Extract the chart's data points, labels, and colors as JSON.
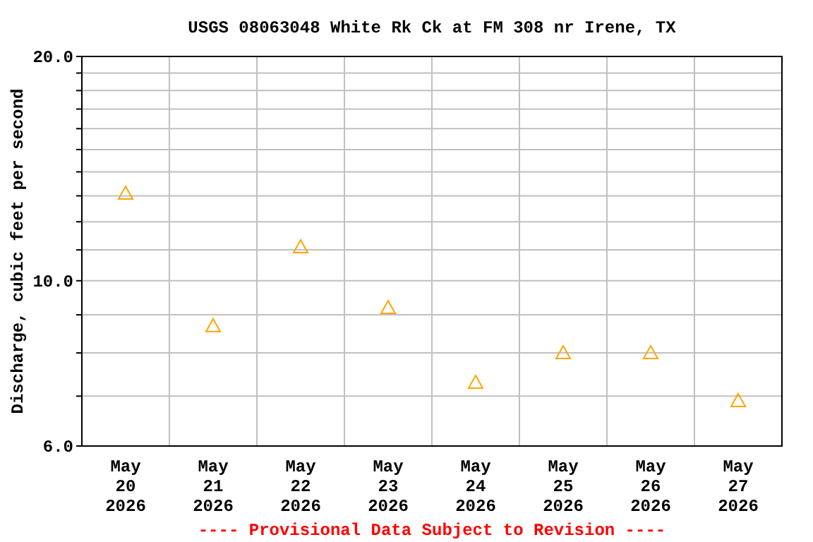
{
  "chart_data": {
    "type": "scatter",
    "title": "USGS 08063048 White Rk Ck at FM 308 nr Irene, TX",
    "ylabel": "Discharge, cubic feet per second",
    "categories": [
      "May\n20\n2026",
      "May\n21\n2026",
      "May\n22\n2026",
      "May\n23\n2026",
      "May\n24\n2026",
      "May\n25\n2026",
      "May\n26\n2026",
      "May\n27\n2026"
    ],
    "series": [
      {
        "color": "#ffa500",
        "values": [
          13.1,
          8.7,
          11.1,
          9.2,
          7.3,
          8.0,
          8.0,
          6.9
        ]
      }
    ],
    "log": "y",
    "ylim": [
      6,
      20
    ],
    "yticks": [
      {
        "value": 6,
        "label": "6.0"
      },
      {
        "value": 7,
        "label": null
      },
      {
        "value": 8,
        "label": null
      },
      {
        "value": 9,
        "label": null
      },
      {
        "value": 10,
        "label": "10.0"
      },
      {
        "value": 11,
        "label": null
      },
      {
        "value": 12,
        "label": null
      },
      {
        "value": 13,
        "label": null
      },
      {
        "value": 14,
        "label": null
      },
      {
        "value": 15,
        "label": null
      },
      {
        "value": 16,
        "label": null
      },
      {
        "value": 17,
        "label": null
      },
      {
        "value": 18,
        "label": null
      },
      {
        "value": 19,
        "label": null
      },
      {
        "value": 20,
        "label": "20.0"
      }
    ],
    "grid": true,
    "marker": "triangle",
    "annotations": [
      "---- Provisional Data Subject to Revision ----"
    ]
  }
}
